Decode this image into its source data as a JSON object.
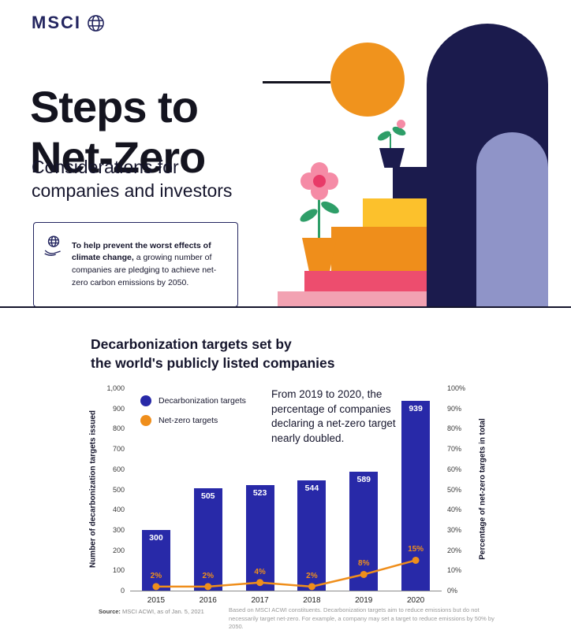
{
  "brand": {
    "logo_text": "MSCI"
  },
  "hero": {
    "title_line1": "Steps to",
    "title_line2": "Net-Zero",
    "subtitle_line1": "Considerations for",
    "subtitle_line2": "companies and investors",
    "callout_bold": "To help prevent the worst effects of climate change,",
    "callout_rest": " a growing number of companies are pledging to achieve net-zero carbon emissions by 2050."
  },
  "colors": {
    "navy": "#1b1b4d",
    "royal_blue": "#2829a8",
    "orange": "#ef8e1b",
    "sun_orange": "#f0931d",
    "yellow": "#fcc12c",
    "crimson": "#ed4d6e",
    "pink": "#f2a2b2",
    "periwinkle": "#8f94c8",
    "green": "#2e9e68"
  },
  "chart": {
    "title_line1": "Decarbonization targets set by",
    "title_line2": "the world's publicly listed companies",
    "legend": [
      {
        "label": "Decarbonization targets",
        "color": "#2829a8"
      },
      {
        "label": "Net-zero targets",
        "color": "#ef8e1b"
      }
    ],
    "annotation": "From 2019 to 2020, the percentage of companies declaring a net-zero target nearly doubled.",
    "ylabel_left": "Number of decarbonization targets issued",
    "ylabel_right": "Percentage of net-zero targets in total",
    "source_label": "Source:",
    "source_text": "MSCI ACWI, as of Jan. 5, 2021",
    "footnote": "Based on MSCI ACWI constituents. Decarbonization targets aim to reduce emissions but do not necessarily target net-zero. For example, a company may set a target to reduce emissions by 50% by 2050."
  },
  "chart_data": {
    "type": "bar",
    "categories": [
      "2015",
      "2016",
      "2017",
      "2018",
      "2019",
      "2020"
    ],
    "series": [
      {
        "name": "Decarbonization targets",
        "type": "bar",
        "axis": "left",
        "color": "#2829a8",
        "values": [
          300,
          505,
          523,
          544,
          589,
          939
        ]
      },
      {
        "name": "Net-zero targets",
        "type": "line",
        "axis": "right",
        "color": "#ef8e1b",
        "unit": "%",
        "values": [
          2,
          2,
          4,
          2,
          8,
          15
        ]
      }
    ],
    "left_axis": {
      "min": 0,
      "max": 1000,
      "step": 100
    },
    "right_axis": {
      "min": 0,
      "max": 100,
      "step": 10,
      "unit": "%"
    },
    "title": "Decarbonization targets set by the world's publicly listed companies",
    "legend_position": "top-left",
    "grid": false
  }
}
